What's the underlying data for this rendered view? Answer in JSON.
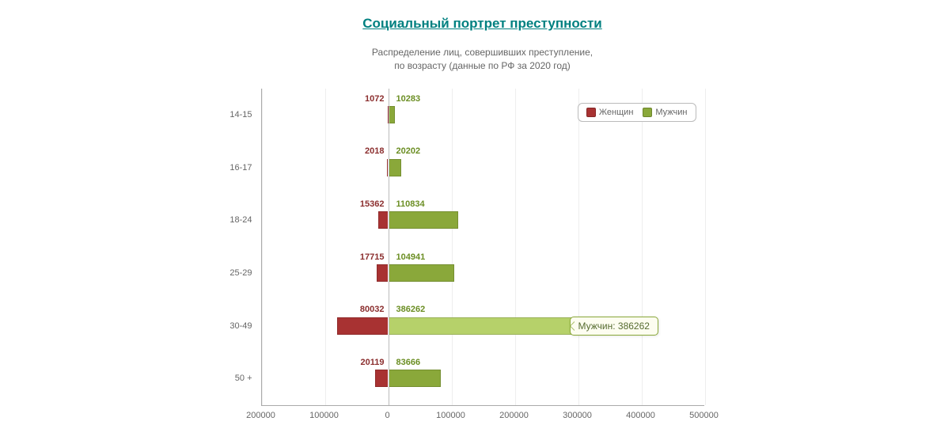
{
  "title": "Социальный портрет преступности",
  "subtitle_line1": "Распределение лиц, совершивших преступление,",
  "subtitle_line2": "по возрасту (данные по РФ за 2020 год)",
  "chart": {
    "type": "bar-diverging-horizontal",
    "background_color": "#ffffff",
    "grid_color": "#eeeeee",
    "axis_color": "#aaaaaa",
    "label_fontsize": 11,
    "value_fontsize": 11,
    "categories": [
      "14-15",
      "16-17",
      "18-24",
      "25-29",
      "30-49",
      "50 +"
    ],
    "series": [
      {
        "name": "Женщин",
        "color": "#a83232",
        "highlight_color": "#c95f5f",
        "label_color": "#8b2e2e",
        "values": [
          1072,
          2018,
          15362,
          17715,
          80032,
          20119
        ],
        "side": "negative"
      },
      {
        "name": "Мужчин",
        "color": "#8aa83a",
        "highlight_color": "#b6d16a",
        "label_color": "#6b8e23",
        "values": [
          10283,
          20202,
          110834,
          104941,
          386262,
          83666
        ],
        "side": "positive"
      }
    ],
    "x_ticks": [
      -200000,
      -100000,
      0,
      100000,
      200000,
      300000,
      400000,
      500000
    ],
    "x_tick_labels": [
      "200000",
      "100000",
      "0",
      "100000",
      "200000",
      "300000",
      "400000",
      "500000"
    ],
    "xmin": -200000,
    "xmax": 500000,
    "highlighted": {
      "row": 4,
      "series": 1
    },
    "tooltip_text": "Мужчин: 386262",
    "legend": {
      "position": "top-right",
      "border_color": "#bbbbbb",
      "bg": "#ffffff"
    }
  }
}
